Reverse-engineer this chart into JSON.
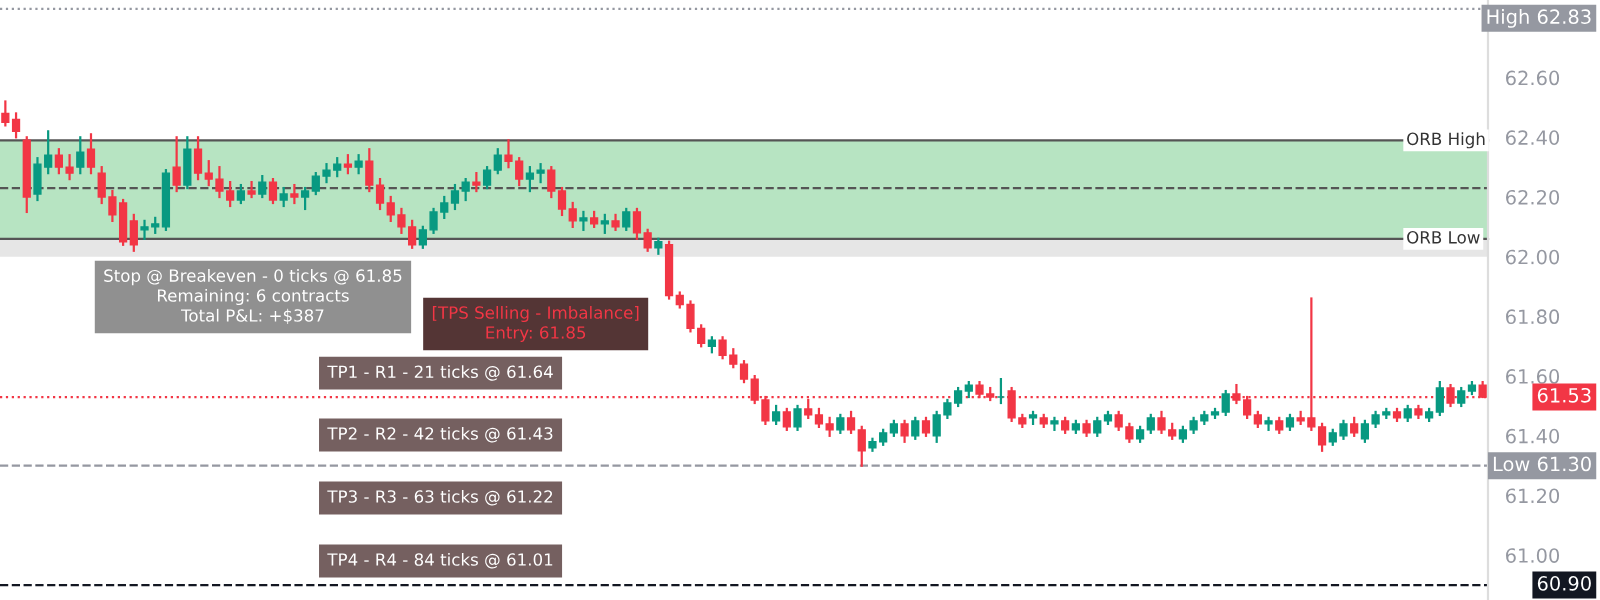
{
  "chart_data": {
    "type": "candlestick",
    "categories": [
      null,
      null,
      null,
      null,
      null,
      null,
      null,
      null,
      null,
      null,
      null,
      null,
      null,
      null,
      null,
      null,
      null,
      null,
      null,
      null,
      null,
      null,
      null,
      null,
      null,
      null,
      null,
      null,
      null,
      null,
      null,
      null,
      null,
      null,
      null,
      null,
      null,
      null,
      null,
      null,
      null,
      null,
      null,
      null,
      null,
      null,
      null,
      null,
      null,
      null,
      null,
      null,
      null,
      null,
      null,
      null,
      null,
      null,
      null,
      null,
      null,
      null,
      null,
      null,
      null,
      null,
      null,
      null,
      null,
      null,
      null,
      null,
      null,
      null,
      null,
      null,
      null,
      null,
      null,
      null,
      null,
      null,
      null,
      null,
      null,
      null,
      null,
      null,
      null,
      null,
      null,
      null,
      null,
      null,
      null,
      null,
      null,
      null,
      null,
      null,
      null,
      null,
      null,
      null,
      null,
      null,
      null,
      null,
      null,
      null,
      null,
      null,
      null,
      null,
      null,
      null,
      null,
      null,
      null,
      null,
      null,
      null,
      null,
      null,
      null,
      null,
      null,
      null,
      null,
      null,
      null,
      null,
      null,
      null,
      null,
      null,
      null,
      null,
      null
    ],
    "ohlc": [
      [
        62.48,
        62.52,
        62.44,
        62.45
      ],
      [
        62.46,
        62.48,
        62.4,
        62.42
      ],
      [
        62.39,
        62.4,
        62.15,
        62.2
      ],
      [
        62.21,
        62.33,
        62.19,
        62.31
      ],
      [
        62.3,
        62.42,
        62.28,
        62.34
      ],
      [
        62.34,
        62.36,
        62.28,
        62.3
      ],
      [
        62.3,
        62.34,
        62.26,
        62.28
      ],
      [
        62.3,
        62.4,
        62.28,
        62.35
      ],
      [
        62.36,
        62.41,
        62.28,
        62.3
      ],
      [
        62.28,
        62.3,
        62.18,
        62.2
      ],
      [
        62.2,
        62.22,
        62.12,
        62.14
      ],
      [
        62.18,
        62.19,
        62.04,
        62.05
      ],
      [
        62.12,
        62.14,
        62.02,
        62.04
      ],
      [
        62.09,
        62.12,
        62.06,
        62.1
      ],
      [
        62.1,
        62.13,
        62.08,
        62.11
      ],
      [
        62.1,
        62.29,
        62.09,
        62.28
      ],
      [
        62.3,
        62.4,
        62.22,
        62.24
      ],
      [
        62.24,
        62.4,
        62.23,
        62.36
      ],
      [
        62.36,
        62.4,
        62.26,
        62.28
      ],
      [
        62.28,
        62.32,
        62.24,
        62.26
      ],
      [
        62.26,
        62.3,
        62.2,
        62.22
      ],
      [
        62.22,
        62.25,
        62.17,
        62.19
      ],
      [
        62.19,
        62.24,
        62.18,
        62.22
      ],
      [
        62.22,
        62.25,
        62.2,
        62.21
      ],
      [
        62.21,
        62.27,
        62.2,
        62.25
      ],
      [
        62.25,
        62.26,
        62.18,
        62.19
      ],
      [
        62.19,
        62.23,
        62.17,
        62.21
      ],
      [
        62.21,
        62.24,
        62.18,
        62.2
      ],
      [
        62.2,
        62.23,
        62.16,
        62.22
      ],
      [
        62.22,
        62.28,
        62.21,
        62.27
      ],
      [
        62.27,
        62.31,
        62.25,
        62.29
      ],
      [
        62.29,
        62.33,
        62.27,
        62.31
      ],
      [
        62.31,
        62.34,
        62.28,
        62.3
      ],
      [
        62.3,
        62.34,
        62.28,
        62.32
      ],
      [
        62.32,
        62.36,
        62.22,
        62.24
      ],
      [
        62.24,
        62.26,
        62.16,
        62.18
      ],
      [
        62.18,
        62.2,
        62.12,
        62.14
      ],
      [
        62.14,
        62.16,
        62.08,
        62.1
      ],
      [
        62.1,
        62.12,
        62.03,
        62.04
      ],
      [
        62.04,
        62.1,
        62.03,
        62.09
      ],
      [
        62.09,
        62.16,
        62.08,
        62.15
      ],
      [
        62.15,
        62.2,
        62.13,
        62.18
      ],
      [
        62.18,
        62.24,
        62.16,
        62.22
      ],
      [
        62.22,
        62.26,
        62.19,
        62.25
      ],
      [
        62.25,
        62.28,
        62.22,
        62.24
      ],
      [
        62.24,
        62.3,
        62.23,
        62.29
      ],
      [
        62.29,
        62.36,
        62.28,
        62.34
      ],
      [
        62.34,
        62.39,
        62.3,
        62.32
      ],
      [
        62.32,
        62.33,
        62.24,
        62.26
      ],
      [
        62.26,
        62.3,
        62.22,
        62.28
      ],
      [
        62.28,
        62.31,
        62.25,
        62.29
      ],
      [
        62.29,
        62.3,
        62.2,
        62.22
      ],
      [
        62.22,
        62.23,
        62.14,
        62.16
      ],
      [
        62.16,
        62.18,
        62.1,
        62.12
      ],
      [
        62.12,
        62.15,
        62.09,
        62.13
      ],
      [
        62.13,
        62.15,
        62.1,
        62.11
      ],
      [
        62.11,
        62.14,
        62.08,
        62.12
      ],
      [
        62.12,
        62.14,
        62.09,
        62.1
      ],
      [
        62.1,
        62.16,
        62.09,
        62.15
      ],
      [
        62.15,
        62.16,
        62.06,
        62.08
      ],
      [
        62.08,
        62.09,
        62.02,
        62.03
      ],
      [
        62.03,
        62.06,
        62.01,
        62.05
      ],
      [
        62.04,
        62.05,
        61.86,
        61.87
      ],
      [
        61.87,
        61.88,
        61.83,
        61.84
      ],
      [
        61.84,
        61.85,
        61.75,
        61.76
      ],
      [
        61.76,
        61.77,
        61.7,
        61.71
      ],
      [
        61.7,
        61.73,
        61.68,
        61.72
      ],
      [
        61.72,
        61.73,
        61.66,
        61.67
      ],
      [
        61.67,
        61.69,
        61.63,
        61.64
      ],
      [
        61.64,
        61.65,
        61.58,
        61.59
      ],
      [
        61.59,
        61.6,
        61.51,
        61.52
      ],
      [
        61.52,
        61.53,
        61.44,
        61.45
      ],
      [
        61.45,
        61.5,
        61.44,
        61.48
      ],
      [
        61.48,
        61.49,
        61.42,
        61.43
      ],
      [
        61.43,
        61.5,
        61.42,
        61.49
      ],
      [
        61.49,
        61.52,
        61.46,
        61.47
      ],
      [
        61.47,
        61.49,
        61.43,
        61.44
      ],
      [
        61.44,
        61.46,
        61.4,
        61.42
      ],
      [
        61.42,
        61.47,
        61.41,
        61.46
      ],
      [
        61.46,
        61.48,
        61.41,
        61.42
      ],
      [
        61.42,
        61.43,
        61.3,
        61.35
      ],
      [
        61.36,
        61.39,
        61.35,
        61.38
      ],
      [
        61.38,
        61.42,
        61.37,
        61.41
      ],
      [
        61.41,
        61.45,
        61.4,
        61.44
      ],
      [
        61.44,
        61.45,
        61.38,
        61.4
      ],
      [
        61.4,
        61.46,
        61.39,
        61.45
      ],
      [
        61.45,
        61.46,
        61.4,
        61.41
      ],
      [
        61.4,
        61.48,
        61.38,
        61.47
      ],
      [
        61.47,
        61.52,
        61.46,
        61.51
      ],
      [
        61.51,
        61.56,
        61.5,
        61.55
      ],
      [
        61.55,
        61.58,
        61.53,
        61.57
      ],
      [
        61.57,
        61.58,
        61.53,
        61.54
      ],
      [
        61.54,
        61.56,
        61.52,
        61.53
      ],
      [
        61.53,
        61.59,
        61.51,
        61.53
      ],
      [
        61.55,
        61.56,
        61.45,
        61.46
      ],
      [
        61.46,
        61.47,
        61.43,
        61.44
      ],
      [
        61.46,
        61.48,
        61.44,
        61.47
      ],
      [
        61.46,
        61.47,
        61.43,
        61.44
      ],
      [
        61.44,
        61.46,
        61.42,
        61.45
      ],
      [
        61.45,
        61.46,
        61.41,
        61.42
      ],
      [
        61.42,
        61.45,
        61.41,
        61.44
      ],
      [
        61.44,
        61.45,
        61.4,
        61.41
      ],
      [
        61.41,
        61.46,
        61.4,
        61.45
      ],
      [
        61.45,
        61.48,
        61.44,
        61.47
      ],
      [
        61.47,
        61.48,
        61.42,
        61.43
      ],
      [
        61.43,
        61.44,
        61.38,
        61.39
      ],
      [
        61.39,
        61.43,
        61.38,
        61.42
      ],
      [
        61.42,
        61.47,
        61.41,
        61.46
      ],
      [
        61.46,
        61.48,
        61.41,
        61.42
      ],
      [
        61.42,
        61.44,
        61.39,
        61.4
      ],
      [
        61.39,
        61.43,
        61.38,
        61.42
      ],
      [
        61.42,
        61.46,
        61.41,
        61.45
      ],
      [
        61.45,
        61.48,
        61.44,
        61.47
      ],
      [
        61.47,
        61.49,
        61.46,
        61.48
      ],
      [
        61.48,
        61.55,
        61.47,
        61.54
      ],
      [
        61.54,
        61.57,
        61.51,
        61.52
      ],
      [
        61.52,
        61.53,
        61.46,
        61.47
      ],
      [
        61.47,
        61.48,
        61.43,
        61.44
      ],
      [
        61.44,
        61.46,
        61.42,
        61.45
      ],
      [
        61.45,
        61.46,
        61.41,
        61.42
      ],
      [
        61.43,
        61.47,
        61.42,
        61.46
      ],
      [
        61.46,
        61.48,
        61.44,
        61.45
      ],
      [
        61.46,
        61.86,
        61.42,
        61.43
      ],
      [
        61.43,
        61.44,
        61.35,
        61.37
      ],
      [
        61.38,
        61.42,
        61.37,
        61.41
      ],
      [
        61.4,
        61.45,
        61.39,
        61.44
      ],
      [
        61.44,
        61.46,
        61.4,
        61.41
      ],
      [
        61.39,
        61.45,
        61.38,
        61.44
      ],
      [
        61.44,
        61.48,
        61.43,
        61.47
      ],
      [
        61.47,
        61.49,
        61.46,
        61.48
      ],
      [
        61.48,
        61.49,
        61.45,
        61.46
      ],
      [
        61.46,
        61.5,
        61.45,
        61.49
      ],
      [
        61.49,
        61.5,
        61.46,
        61.47
      ],
      [
        61.46,
        61.49,
        61.45,
        61.48
      ],
      [
        61.48,
        61.58,
        61.47,
        61.56
      ],
      [
        61.56,
        61.57,
        61.5,
        61.51
      ],
      [
        61.51,
        61.56,
        61.5,
        61.55
      ],
      [
        61.55,
        61.58,
        61.54,
        61.57
      ],
      [
        61.57,
        61.58,
        61.53,
        61.53
      ]
    ],
    "ylim": [
      60.85,
      62.86
    ],
    "yticks": [
      {
        "value": 61.0,
        "label": "61.00"
      },
      {
        "value": 61.2,
        "label": "61.20"
      },
      {
        "value": 61.4,
        "label": "61.40"
      },
      {
        "value": 61.6,
        "label": "61.60"
      },
      {
        "value": 61.8,
        "label": "61.80"
      },
      {
        "value": 62.0,
        "label": "62.00"
      },
      {
        "value": 62.2,
        "label": "62.20"
      },
      {
        "value": 62.4,
        "label": "62.40"
      },
      {
        "value": 62.6,
        "label": "62.60"
      }
    ],
    "tick_labels": "y",
    "grid": false,
    "bands": [
      {
        "axis": "y",
        "from": 62.06,
        "to": 62.39,
        "label": null,
        "color": "#b7e4c2"
      },
      {
        "axis": "y",
        "from": 62.0,
        "to": 62.06,
        "label": null,
        "color": "#e6e6e6"
      }
    ],
    "ref_lines": [
      {
        "axis": "y",
        "value": 62.39,
        "label": "ORB High",
        "color": "#555555",
        "line_style": "solid"
      },
      {
        "axis": "y",
        "value": 62.23,
        "label": null,
        "color": "#555555",
        "line_style": "dashed"
      },
      {
        "axis": "y",
        "value": 62.06,
        "label": "ORB Low",
        "color": "#555555",
        "line_style": "solid"
      },
      {
        "axis": "y",
        "value": 61.53,
        "label": "61.53",
        "color": "#f23645",
        "line_style": "dotted"
      },
      {
        "axis": "y",
        "value": 61.3,
        "label": "Low 61.30",
        "color": "#9598a1",
        "line_style": "dashed"
      },
      {
        "axis": "y",
        "value": 60.9,
        "label": "60.90",
        "color": "#131722",
        "line_style": "dashed"
      },
      {
        "axis": "y",
        "value": 62.83,
        "label": "High 62.83",
        "color": "#9598a1",
        "line_style": "dotted"
      }
    ],
    "annotations": [
      "Stop @ Breakeven - 0 ticks @ 61.85\nRemaining: 6 contracts\nTotal P&L: +$387",
      "[TPS Selling - Imbalance]\nEntry: 61.85",
      "TP1 - R1 - 21 ticks @ 61.64",
      "TP2 - R2 - 42 ticks @ 61.43",
      "TP3 - R3 - 63 ticks @ 61.22",
      "TP4 - R4 - 84 ticks @ 61.01"
    ]
  }
}
